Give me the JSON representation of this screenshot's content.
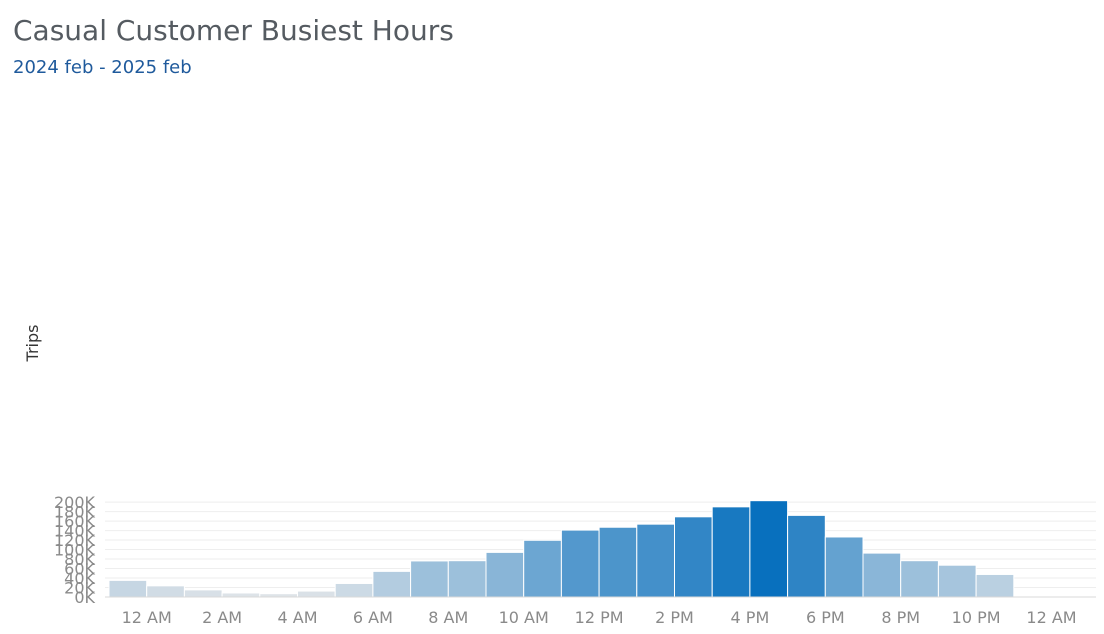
{
  "chart_data": {
    "type": "bar",
    "title": "Casual Customer Busiest Hours",
    "subtitle": "2024 feb - 2025 feb",
    "xlabel": "",
    "ylabel": "Trips",
    "x_tick_labels": [
      "12 AM",
      "2 AM",
      "4 AM",
      "6 AM",
      "8 AM",
      "10 AM",
      "12 PM",
      "2 PM",
      "4 PM",
      "6 PM",
      "8 PM",
      "10 PM",
      "12 AM"
    ],
    "y_tick_labels": [
      "0K",
      "20K",
      "40K",
      "60K",
      "80K",
      "100K",
      "120K",
      "140K",
      "160K",
      "180K",
      "200K"
    ],
    "ylim": [
      0,
      205000
    ],
    "grid": true,
    "categories": [
      0,
      1,
      2,
      3,
      4,
      5,
      6,
      7,
      8,
      9,
      10,
      11,
      12,
      13,
      14,
      15,
      16,
      17,
      18,
      19,
      20,
      21,
      22,
      23
    ],
    "values": [
      35000,
      23500,
      15000,
      8500,
      7000,
      12500,
      28500,
      54000,
      76000,
      76500,
      94000,
      119500,
      141000,
      147000,
      153500,
      169000,
      190000,
      203000,
      172000,
      126500,
      92500,
      76500,
      67000,
      47500
    ],
    "colors": {
      "low": "#e3e6e9",
      "high": "#0870be",
      "grid": "#eeeeee",
      "axis": "#d9d9d9"
    }
  }
}
